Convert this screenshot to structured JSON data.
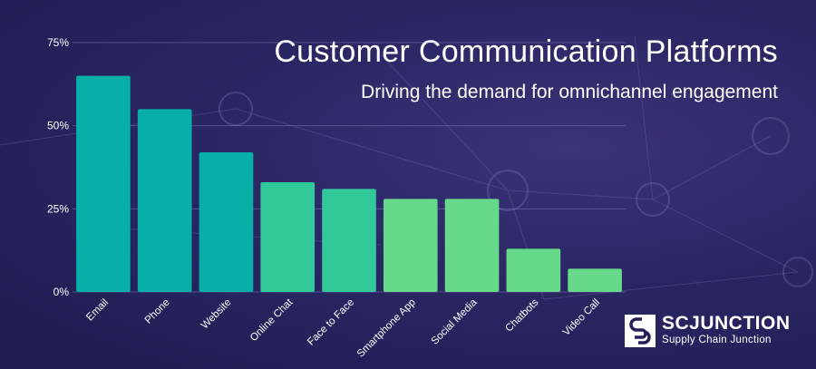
{
  "chart_data": {
    "type": "bar",
    "title": "Customer Communication Platforms",
    "subtitle": "Driving the demand for omnichannel engagement",
    "categories": [
      "Email",
      "Phone",
      "Website",
      "Online Chat",
      "Face to Face",
      "Smartphone App",
      "Social Media",
      "Chatbots",
      "Video Call"
    ],
    "values": [
      65,
      55,
      42,
      33,
      31,
      28,
      28,
      13,
      7
    ],
    "ylim": [
      0,
      75
    ],
    "yticks": [
      0,
      25,
      50,
      75
    ],
    "ytick_labels": [
      "0%",
      "25%",
      "50%",
      "75%"
    ],
    "xlabel": "",
    "ylabel": "",
    "grid": true,
    "colors": [
      "#06afa8",
      "#06afa8",
      "#06afa8",
      "#32c99a",
      "#32c99a",
      "#67d98a",
      "#67d98a",
      "#67d98a",
      "#67d98a"
    ]
  },
  "logo": {
    "name": "SCJUNCTION",
    "tagline": "Supply Chain Junction"
  }
}
